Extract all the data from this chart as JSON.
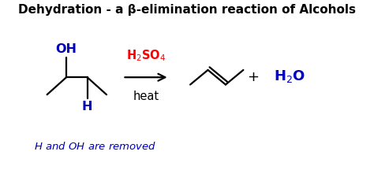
{
  "title": "Dehydration - a β-elimination reaction of Alcohols",
  "title_fontsize": 11,
  "title_fontweight": "bold",
  "title_color": "#000000",
  "background_color": "#ffffff",
  "reagent_color": "#ff0000",
  "condition_color": "#000000",
  "plus_color": "#000000",
  "water_color": "#0000bb",
  "footnote_color": "#0000bb",
  "bond_color": "#000000",
  "oh_color": "#0000bb",
  "h_color": "#0000bb"
}
